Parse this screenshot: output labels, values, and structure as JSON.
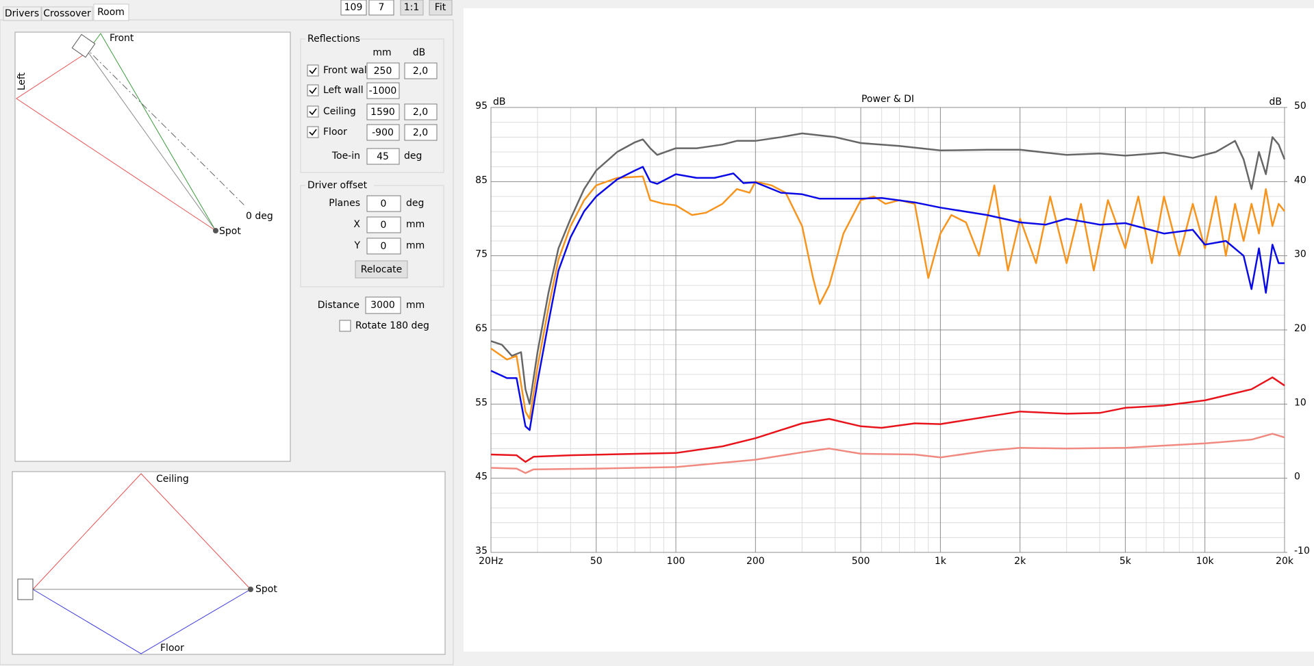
{
  "tabs": [
    "Drivers",
    "Crossover",
    "Room"
  ],
  "toolbar": [
    109,
    7,
    "1:1",
    "Fit"
  ],
  "top_view": {
    "front": "Front",
    "left": "Left",
    "axis": "0 deg",
    "spot": "Spot"
  },
  "side_view": {
    "ceiling": "Ceiling",
    "spot": "Spot",
    "floor": "Floor"
  },
  "reflections": {
    "title": "Reflections",
    "columns": [
      "mm",
      "dB"
    ],
    "rows": [
      {
        "label": "Front wall",
        "checked": true,
        "mm": 250,
        "db": "2,0"
      },
      {
        "label": "Left wall",
        "checked": true,
        "mm": -1000
      },
      {
        "label": "Ceiling",
        "checked": true,
        "mm": 1590,
        "db": "2,0"
      },
      {
        "label": "Floor",
        "checked": true,
        "mm": -900,
        "db": "2,0"
      }
    ],
    "toe_in": {
      "label": "Toe-in",
      "value": 45,
      "unit": "deg"
    }
  },
  "driver_offset": {
    "title": "Driver offset",
    "rows": [
      {
        "label": "Planes",
        "value": 0,
        "unit": "deg"
      },
      {
        "label": "X",
        "value": 0,
        "unit": "mm"
      },
      {
        "label": "Y",
        "value": 0,
        "unit": "mm"
      }
    ],
    "button": "Relocate"
  },
  "distance": {
    "label": "Distance",
    "value": 3000,
    "unit": "mm"
  },
  "rotate": {
    "label": "Rotate 180 deg",
    "checked": false
  },
  "chart_data": {
    "type": "line",
    "title": "Power & DI",
    "ylabel": "dB",
    "y2label": "dB",
    "xscale": "log",
    "grid": true,
    "xlim": [
      20,
      20000
    ],
    "ylim": [
      35,
      95
    ],
    "y2lim": [
      -10,
      50
    ],
    "xticks": [
      {
        "value": 20,
        "label": "20Hz"
      },
      50,
      100,
      200,
      500,
      {
        "value": 1000,
        "label": "1k"
      },
      {
        "value": 2000,
        "label": "2k"
      },
      {
        "value": 5000,
        "label": "5k"
      },
      {
        "value": 10000,
        "label": "10k"
      },
      {
        "value": 20000,
        "label": "20k"
      }
    ],
    "xminor": [
      30,
      40,
      60,
      70,
      80,
      90,
      300,
      400,
      600,
      700,
      800,
      900,
      3000,
      4000,
      6000,
      7000,
      8000,
      9000
    ],
    "yticks": [
      35,
      45,
      55,
      65,
      75,
      85,
      95
    ],
    "yminor": [
      37,
      39,
      41,
      43,
      47,
      49,
      51,
      53,
      57,
      59,
      61,
      63,
      67,
      69,
      71,
      73,
      77,
      79,
      81,
      83,
      87,
      89,
      91,
      93
    ],
    "y2ticks": [
      -10,
      0,
      10,
      20,
      30,
      40,
      50
    ],
    "series": [
      {
        "color": "#666666",
        "x": [
          20,
          22,
          24,
          26,
          27,
          28,
          30,
          33,
          36,
          40,
          45,
          50,
          60,
          70,
          75,
          80,
          85,
          100,
          120,
          150,
          170,
          200,
          250,
          300,
          400,
          500,
          700,
          1000,
          1500,
          2000,
          3000,
          4000,
          5000,
          7000,
          9000,
          11000,
          13000,
          14000,
          15000,
          16000,
          17000,
          18000,
          19000,
          20000
        ],
        "values": [
          63.5,
          63,
          61.5,
          62,
          57,
          55,
          62,
          70,
          76,
          80,
          84,
          86.5,
          89,
          90.3,
          90.7,
          89.5,
          88.6,
          89.5,
          89.5,
          90,
          90.5,
          90.5,
          91,
          91.5,
          91,
          90.2,
          89.8,
          89.2,
          89.3,
          89.3,
          88.6,
          88.8,
          88.5,
          88.9,
          88.2,
          89,
          90.5,
          88,
          84,
          89,
          86,
          91,
          90,
          88
        ]
      },
      {
        "color": "#f7941d",
        "x": [
          20,
          23,
          25,
          27,
          28,
          30,
          33,
          36,
          40,
          45,
          50,
          60,
          75,
          80,
          90,
          100,
          115,
          130,
          150,
          170,
          190,
          200,
          230,
          260,
          300,
          330,
          350,
          380,
          430,
          500,
          560,
          620,
          700,
          800,
          900,
          1000,
          1100,
          1250,
          1400,
          1600,
          1800,
          2000,
          2300,
          2600,
          3000,
          3400,
          3800,
          4300,
          5000,
          5600,
          6300,
          7000,
          8000,
          9000,
          10000,
          11000,
          12000,
          13000,
          14000,
          15000,
          16000,
          17000,
          18000,
          19000,
          20000
        ],
        "values": [
          62.5,
          61,
          61.5,
          54,
          53,
          60,
          68,
          74.5,
          79,
          82.5,
          84.5,
          85.5,
          85.7,
          82.5,
          82,
          81.8,
          80.5,
          80.8,
          82,
          84,
          83.5,
          85,
          84.5,
          83.5,
          79,
          72,
          68.5,
          71,
          78,
          82.5,
          83,
          82,
          82.5,
          82,
          72,
          78,
          80.5,
          79.5,
          75,
          84.5,
          73,
          80,
          74,
          83,
          74,
          82,
          73,
          82.5,
          76,
          83,
          74,
          83,
          75,
          82,
          76,
          83,
          75,
          82,
          77,
          82,
          78,
          84,
          79,
          82,
          81
        ]
      },
      {
        "color": "#0a0ae6",
        "x": [
          20,
          23,
          25,
          27,
          28,
          30,
          33,
          36,
          40,
          45,
          50,
          60,
          70,
          75,
          80,
          85,
          100,
          120,
          140,
          165,
          180,
          200,
          250,
          300,
          350,
          500,
          600,
          800,
          1000,
          1500,
          2000,
          2500,
          3000,
          4000,
          5000,
          7000,
          9000,
          10000,
          12000,
          14000,
          15000,
          16000,
          17000,
          18000,
          19000,
          20000
        ],
        "values": [
          59.5,
          58.5,
          58.5,
          52,
          51.5,
          58,
          66,
          73,
          77.5,
          81,
          83,
          85.3,
          86.5,
          87,
          85,
          84.7,
          86,
          85.5,
          85.5,
          86.1,
          84.8,
          84.9,
          83.5,
          83.3,
          82.7,
          82.7,
          82.8,
          82.2,
          81.5,
          80.5,
          79.5,
          79.2,
          80,
          79.2,
          79.4,
          78,
          78.5,
          76.5,
          77,
          75,
          70.5,
          76,
          70,
          76.5,
          74,
          74
        ]
      },
      {
        "color": "#e8141c",
        "axis": "y2",
        "x": [
          20,
          25,
          27,
          29,
          40,
          100,
          150,
          200,
          300,
          380,
          500,
          600,
          800,
          1000,
          1500,
          2000,
          3000,
          4000,
          5000,
          7000,
          10000,
          15000,
          18000,
          20000
        ],
        "values": [
          3.2,
          3.1,
          2.2,
          2.9,
          3.1,
          3.4,
          4.3,
          5.4,
          7.4,
          8,
          7,
          6.8,
          7.4,
          7.3,
          8.3,
          9,
          8.7,
          8.8,
          9.5,
          9.8,
          10.5,
          12,
          13.6,
          12.5
        ]
      },
      {
        "color": "#f08a80",
        "axis": "y2",
        "x": [
          20,
          25,
          27,
          29,
          50,
          100,
          200,
          300,
          380,
          500,
          800,
          1000,
          1500,
          2000,
          3000,
          5000,
          7000,
          10000,
          15000,
          18000,
          20000
        ],
        "values": [
          1.4,
          1.3,
          0.7,
          1.2,
          1.3,
          1.5,
          2.5,
          3.5,
          4,
          3.3,
          3.2,
          2.8,
          3.7,
          4.1,
          4,
          4.1,
          4.4,
          4.7,
          5.2,
          6,
          5.5
        ]
      }
    ]
  }
}
